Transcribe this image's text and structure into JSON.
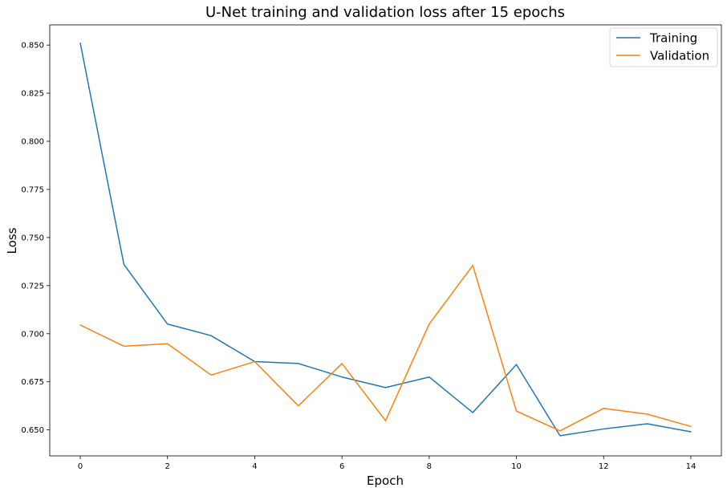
{
  "chart_data": {
    "type": "line",
    "title": "U-Net training and validation loss after 15 epochs",
    "xlabel": "Epoch",
    "ylabel": "Loss",
    "xlim": [
      -0.7,
      14.7
    ],
    "ylim": [
      0.6365,
      0.8605
    ],
    "x_ticks": [
      0,
      2,
      4,
      6,
      8,
      10,
      12,
      14
    ],
    "x_tick_labels": [
      "0",
      "2",
      "4",
      "6",
      "8",
      "10",
      "12",
      "14"
    ],
    "y_ticks": [
      0.65,
      0.675,
      0.7,
      0.725,
      0.75,
      0.775,
      0.8,
      0.825,
      0.85
    ],
    "y_tick_labels": [
      "0.650",
      "0.675",
      "0.700",
      "0.725",
      "0.750",
      "0.775",
      "0.800",
      "0.825",
      "0.850"
    ],
    "grid": false,
    "legend_position": "top-right",
    "x": [
      0,
      1,
      2,
      3,
      4,
      5,
      6,
      7,
      8,
      9,
      10,
      11,
      12,
      13,
      14
    ],
    "series": [
      {
        "name": "Training",
        "color": "#1f77b4",
        "values": [
          0.851,
          0.736,
          0.705,
          0.699,
          0.6855,
          0.6845,
          0.6775,
          0.672,
          0.6775,
          0.659,
          0.684,
          0.647,
          0.6505,
          0.6532,
          0.649
        ]
      },
      {
        "name": "Validation",
        "color": "#ff7f0e",
        "values": [
          0.7045,
          0.6935,
          0.6948,
          0.6785,
          0.6855,
          0.6625,
          0.6845,
          0.6548,
          0.705,
          0.7355,
          0.6598,
          0.6495,
          0.6612,
          0.6582,
          0.6518
        ]
      }
    ]
  }
}
